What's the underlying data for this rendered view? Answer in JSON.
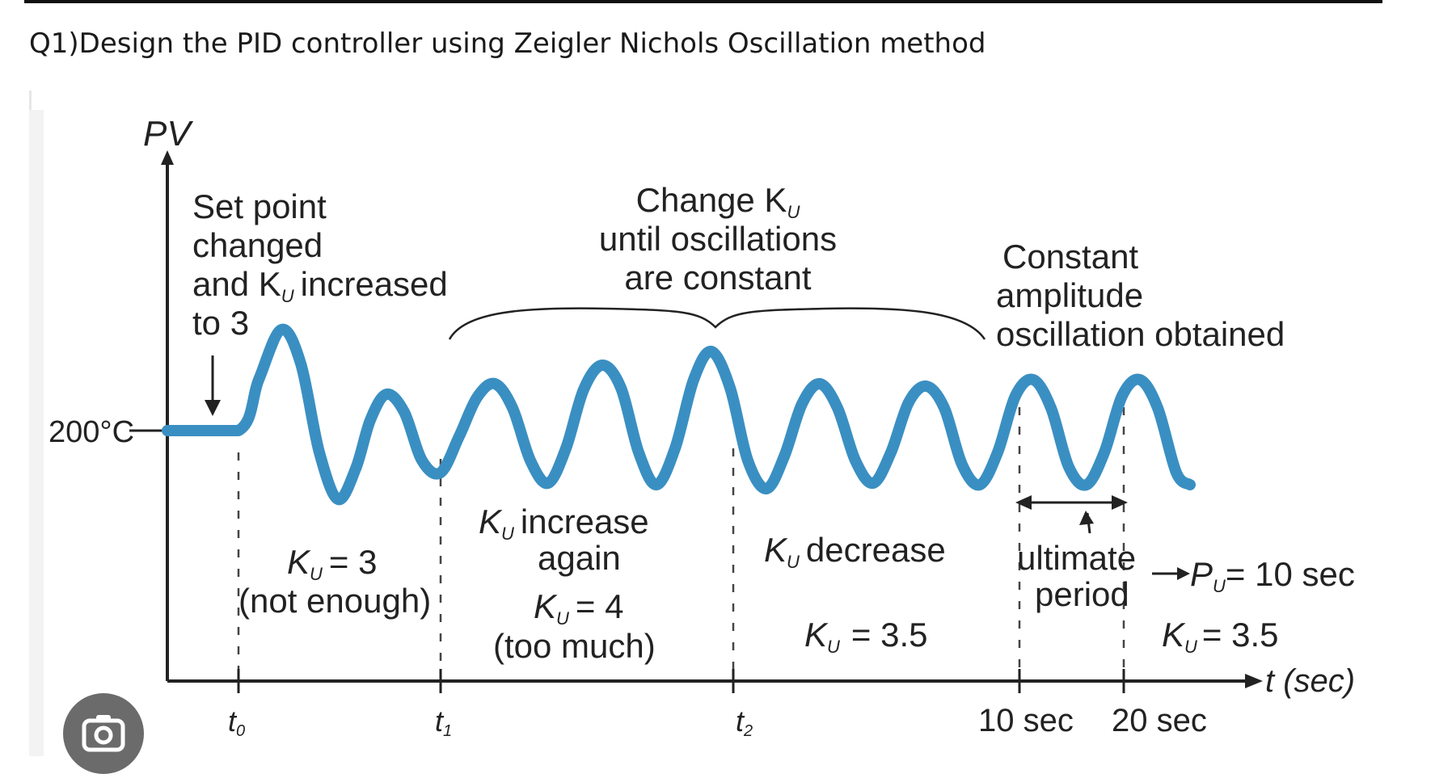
{
  "question": "Q1)Design the PID controller using Zeigler Nichols  Oscillation method",
  "diagram": {
    "y_axis_label": "PV",
    "x_axis_label": "t (sec)",
    "setpoint_label": "200°C",
    "annotations": {
      "set_point": [
        "Set point",
        "changed",
        "and K",
        "increased",
        "to 3"
      ],
      "change_ku": [
        "Change K",
        "until oscillations",
        "are constant"
      ],
      "constant": [
        "Constant",
        "amplitude",
        "oscillation obtained"
      ],
      "seg1": [
        "K",
        "= 3",
        "(not enough)"
      ],
      "seg2": [
        "K",
        "increase",
        "again",
        "K",
        "= 4",
        "(too much)"
      ],
      "seg3": [
        "K",
        "decrease",
        "K",
        "= 3.5"
      ],
      "ultimate": [
        "ultimate",
        "period"
      ],
      "pu_value": [
        "P",
        "= 10 sec"
      ],
      "ku_value": [
        "K",
        "= 3.5"
      ]
    },
    "subscript": "U",
    "time_ticks": [
      "t",
      "t",
      "t",
      "10 sec",
      "20 sec"
    ],
    "time_subs": [
      "0",
      "1",
      "2"
    ]
  },
  "colors": {
    "signal": "#3a8fc2",
    "axis": "#222222"
  },
  "camera_icon": "camera-search-icon"
}
